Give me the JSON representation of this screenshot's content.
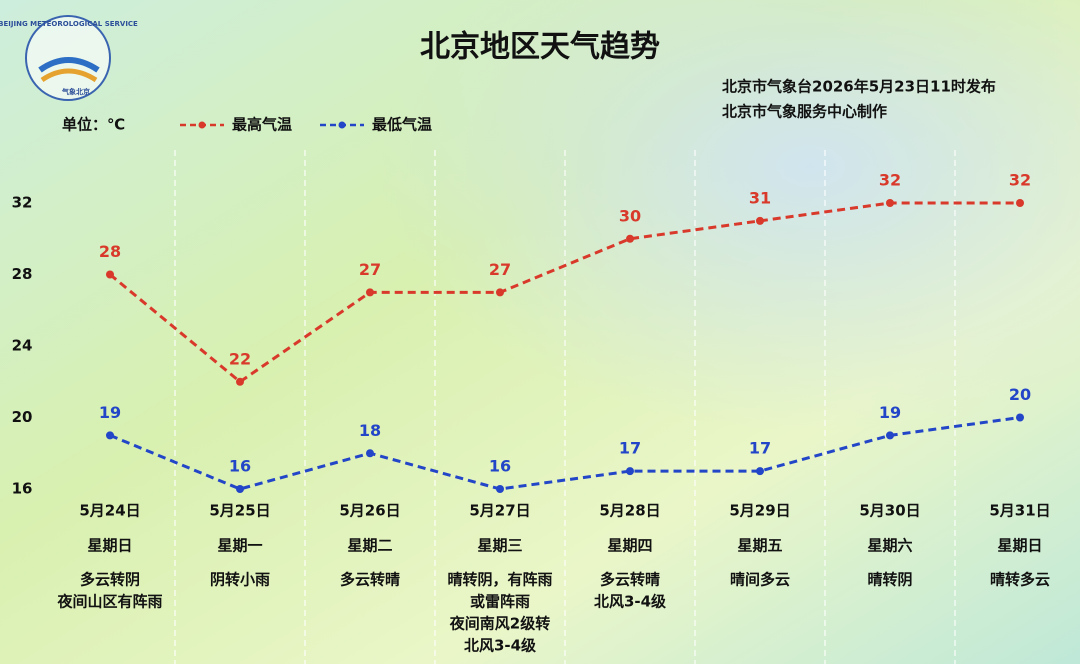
{
  "chart_data": {
    "type": "line",
    "title": "北京地区天气趋势",
    "publisher": [
      "北京市气象台2026年5月23日11时发布",
      "北京市气象服务中心制作"
    ],
    "logo": [
      "BEIJING METEOROLOGICAL SERVICE",
      "气象北京"
    ],
    "unit_label": "单位：℃",
    "categories": [
      "5月24日",
      "5月25日",
      "5月26日",
      "5月27日",
      "5月28日",
      "5月29日",
      "5月30日",
      "5月31日"
    ],
    "weekdays": [
      "星期日",
      "星期一",
      "星期二",
      "星期三",
      "星期四",
      "星期五",
      "星期六",
      "星期日"
    ],
    "weather": [
      [
        "多云转阴",
        "夜间山区有阵雨"
      ],
      [
        "阴转小雨"
      ],
      [
        "多云转晴"
      ],
      [
        "晴转阴，有阵雨",
        "或雷阵雨",
        "夜间南风2级转",
        "北风3-4级"
      ],
      [
        "多云转晴",
        "北风3-4级"
      ],
      [
        "晴间多云"
      ],
      [
        "晴转阴"
      ],
      [
        "晴转多云"
      ]
    ],
    "series": [
      {
        "name": "最高气温",
        "color": "#d9392b",
        "values": [
          28,
          22,
          27,
          27,
          30,
          31,
          32,
          32
        ]
      },
      {
        "name": "最低气温",
        "color": "#2346c8",
        "values": [
          19,
          16,
          18,
          16,
          17,
          17,
          19,
          20
        ]
      }
    ],
    "ylim": [
      16,
      32
    ],
    "yticks": [
      16,
      20,
      24,
      28,
      32
    ],
    "grid": false
  }
}
